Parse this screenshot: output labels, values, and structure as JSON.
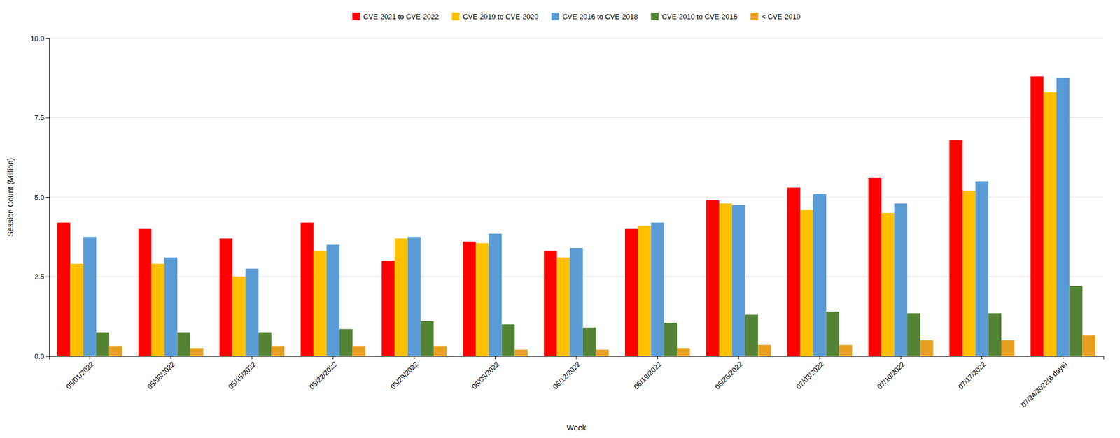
{
  "chart_data": {
    "type": "bar",
    "xlabel": "Week",
    "ylabel": "Session Count (Million)",
    "categories": [
      "05/01/2022",
      "05/08/2022",
      "05/15/2022",
      "05/22/2022",
      "05/29/2022",
      "06/05/2022",
      "06/12/2022",
      "06/19/2022",
      "06/26/2022",
      "07/03/2022",
      "07/10/2022",
      "07/17/2022",
      "07/24/2022(8 days)"
    ],
    "series": [
      {
        "name": "CVE-2021 to CVE-2022",
        "color": "#FF0000",
        "values": [
          4.2,
          4.0,
          3.7,
          4.2,
          3.0,
          3.6,
          3.3,
          4.0,
          4.9,
          5.3,
          5.6,
          6.8,
          8.8
        ]
      },
      {
        "name": "CVE-2019 to CVE-2020",
        "color": "#FFC000",
        "values": [
          2.9,
          2.9,
          2.5,
          3.3,
          3.7,
          3.55,
          3.1,
          4.1,
          4.8,
          4.6,
          4.5,
          5.2,
          8.3
        ]
      },
      {
        "name": "CVE-2016 to CVE-2018",
        "color": "#5B9BD5",
        "values": [
          3.75,
          3.1,
          2.75,
          3.5,
          3.75,
          3.85,
          3.4,
          4.2,
          4.75,
          5.1,
          4.8,
          5.5,
          8.75
        ]
      },
      {
        "name": "CVE-2010 to CVE-2016",
        "color": "#548235",
        "values": [
          0.75,
          0.75,
          0.75,
          0.85,
          1.1,
          1.0,
          0.9,
          1.05,
          1.3,
          1.4,
          1.35,
          1.35,
          2.2
        ]
      },
      {
        "name": "< CVE-2010",
        "color": "#E8A020",
        "values": [
          0.3,
          0.25,
          0.3,
          0.3,
          0.3,
          0.2,
          0.2,
          0.25,
          0.35,
          0.35,
          0.5,
          0.5,
          0.65
        ]
      }
    ],
    "ylim": [
      0,
      10.0
    ],
    "yticks": [
      {
        "value": 0.0,
        "label": "0.0"
      },
      2.5,
      {
        "value": 5.0,
        "label": "5.0"
      },
      7.5,
      {
        "value": 10.0,
        "label": "10.0"
      }
    ],
    "grid": true,
    "legend": "top"
  }
}
